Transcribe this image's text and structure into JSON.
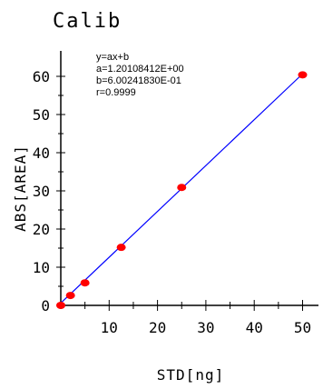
{
  "chart_data": {
    "type": "scatter",
    "title": "Calib",
    "xlabel": "STD[ng]",
    "ylabel": "ABS[AREA]",
    "xlim": [
      0,
      55
    ],
    "ylim": [
      0,
      65
    ],
    "x_ticks": [
      10,
      20,
      30,
      40,
      50
    ],
    "y_ticks": [
      0,
      10,
      20,
      30,
      40,
      50,
      60
    ],
    "grid": false,
    "points": [
      {
        "x": 0,
        "y": 0
      },
      {
        "x": 2,
        "y": 2.6
      },
      {
        "x": 5,
        "y": 5.9
      },
      {
        "x": 12.5,
        "y": 15.2
      },
      {
        "x": 25,
        "y": 30.9
      },
      {
        "x": 50,
        "y": 60.4
      }
    ],
    "point_color": "#ff0000",
    "fit": {
      "a": 1.20108412,
      "b": 0.60024183,
      "color": "#0000ff",
      "x_range": [
        0,
        50
      ]
    },
    "annotations": [
      "y=ax+b",
      "a=1.20108412E+00",
      "b=6.00241830E-01",
      "r=0.9999"
    ]
  }
}
